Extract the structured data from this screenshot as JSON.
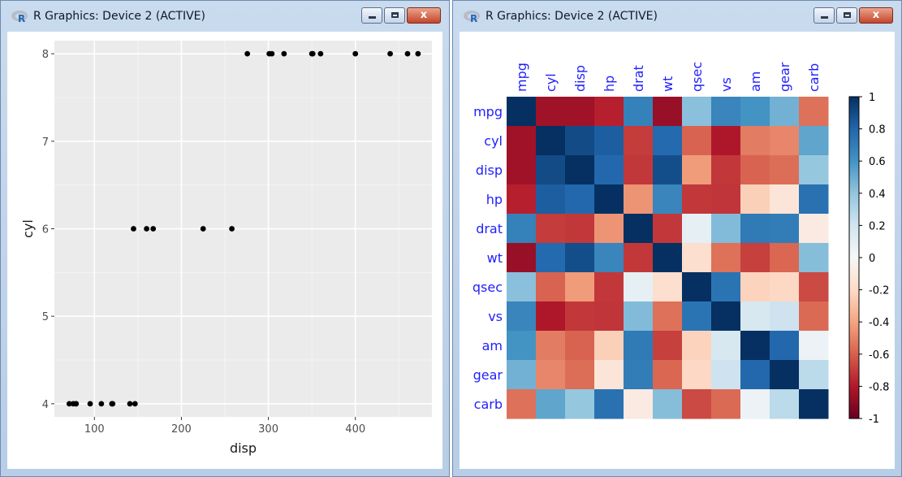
{
  "windows": {
    "left": {
      "title": "R Graphics: Device 2 (ACTIVE)"
    },
    "right": {
      "title": "R Graphics: Device 2 (ACTIVE)"
    },
    "close_glyph": "x"
  },
  "chart_data": [
    {
      "type": "scatter",
      "title": "",
      "xlabel": "disp",
      "ylabel": "cyl",
      "xlim": [
        54,
        488
      ],
      "ylim": [
        3.85,
        8.15
      ],
      "xticks": [
        100,
        200,
        300,
        400
      ],
      "yticks": [
        4,
        5,
        6,
        7,
        8
      ],
      "grid": true,
      "background": "#ebebeb",
      "point_color": "#000000",
      "points": [
        {
          "x": 71.1,
          "y": 4
        },
        {
          "x": 75.7,
          "y": 4
        },
        {
          "x": 78.7,
          "y": 4
        },
        {
          "x": 79,
          "y": 4
        },
        {
          "x": 95.1,
          "y": 4
        },
        {
          "x": 108,
          "y": 4
        },
        {
          "x": 120.1,
          "y": 4
        },
        {
          "x": 120.3,
          "y": 4
        },
        {
          "x": 121,
          "y": 4
        },
        {
          "x": 140.8,
          "y": 4
        },
        {
          "x": 146.7,
          "y": 4
        },
        {
          "x": 145,
          "y": 6
        },
        {
          "x": 160,
          "y": 6
        },
        {
          "x": 167.6,
          "y": 6
        },
        {
          "x": 225,
          "y": 6
        },
        {
          "x": 258,
          "y": 6
        },
        {
          "x": 275.8,
          "y": 8
        },
        {
          "x": 301,
          "y": 8
        },
        {
          "x": 304,
          "y": 8
        },
        {
          "x": 318,
          "y": 8
        },
        {
          "x": 350,
          "y": 8
        },
        {
          "x": 351,
          "y": 8
        },
        {
          "x": 360,
          "y": 8
        },
        {
          "x": 400,
          "y": 8
        },
        {
          "x": 440,
          "y": 8
        },
        {
          "x": 460,
          "y": 8
        },
        {
          "x": 472,
          "y": 8
        }
      ]
    },
    {
      "type": "heatmap",
      "title": "",
      "variables": [
        "mpg",
        "cyl",
        "disp",
        "hp",
        "drat",
        "wt",
        "qsec",
        "vs",
        "am",
        "gear",
        "carb"
      ],
      "matrix": [
        [
          1.0,
          -0.85,
          -0.85,
          -0.78,
          0.68,
          -0.87,
          0.42,
          0.66,
          0.6,
          0.48,
          -0.55
        ],
        [
          -0.85,
          1.0,
          0.9,
          0.83,
          -0.7,
          0.78,
          -0.59,
          -0.81,
          -0.52,
          -0.49,
          0.53
        ],
        [
          -0.85,
          0.9,
          1.0,
          0.79,
          -0.71,
          0.89,
          -0.43,
          -0.71,
          -0.59,
          -0.56,
          0.39
        ],
        [
          -0.78,
          0.83,
          0.79,
          1.0,
          -0.45,
          0.66,
          -0.71,
          -0.72,
          -0.24,
          -0.13,
          0.75
        ],
        [
          0.68,
          -0.7,
          -0.71,
          -0.45,
          1.0,
          -0.71,
          0.09,
          0.44,
          0.71,
          0.7,
          -0.09
        ],
        [
          -0.87,
          0.78,
          0.89,
          0.66,
          -0.71,
          1.0,
          -0.17,
          -0.55,
          -0.69,
          -0.58,
          0.43
        ],
        [
          0.42,
          -0.59,
          -0.43,
          -0.71,
          0.09,
          -0.17,
          1.0,
          0.74,
          -0.23,
          -0.21,
          -0.66
        ],
        [
          0.66,
          -0.81,
          -0.71,
          -0.72,
          0.44,
          -0.55,
          0.74,
          1.0,
          0.17,
          0.21,
          -0.57
        ],
        [
          0.6,
          -0.52,
          -0.59,
          -0.24,
          0.71,
          -0.69,
          -0.23,
          0.17,
          1.0,
          0.79,
          0.06
        ],
        [
          0.48,
          -0.49,
          -0.56,
          -0.13,
          0.7,
          -0.58,
          -0.21,
          0.21,
          0.79,
          1.0,
          0.27
        ],
        [
          -0.55,
          0.53,
          0.39,
          0.75,
          -0.09,
          0.43,
          -0.66,
          -0.57,
          0.06,
          0.27,
          1.0
        ]
      ],
      "colorscale": [
        "#67001f",
        "#b2182b",
        "#d6604d",
        "#f4a582",
        "#fddbc7",
        "#f7f7f7",
        "#d1e5f0",
        "#92c5de",
        "#4393c3",
        "#2166ac",
        "#053061"
      ],
      "label_color": "#1f1fff",
      "legend": {
        "position": "right",
        "range": [
          -1,
          1
        ],
        "ticks": [
          "-1",
          "-0.8",
          "-0.6",
          "-0.4",
          "-0.2",
          "0",
          "0.2",
          "0.4",
          "0.6",
          "0.8",
          "1"
        ]
      }
    }
  ]
}
